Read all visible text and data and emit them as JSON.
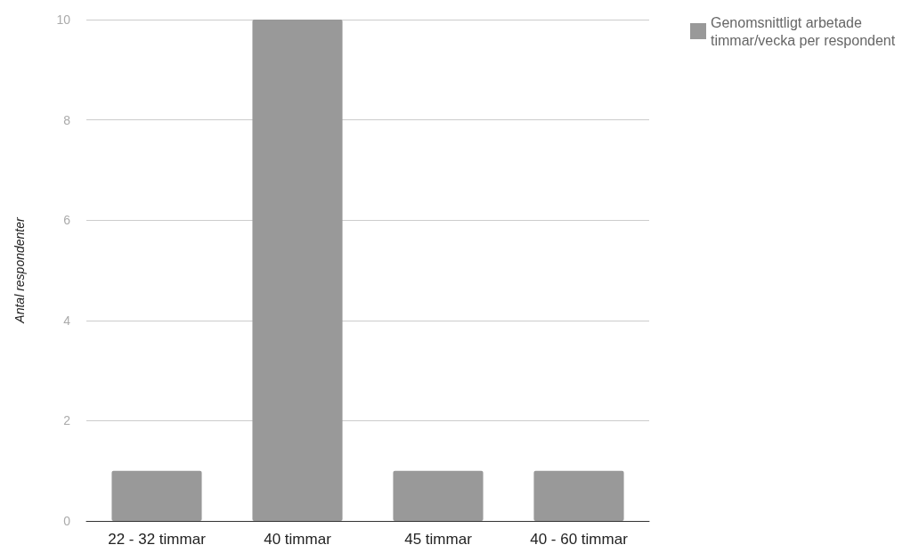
{
  "chart_data": {
    "type": "bar",
    "ylabel": "Antal respondenter",
    "categories": [
      "22 - 32 timmar",
      "40 timmar",
      "45 timmar",
      "40 - 60 timmar"
    ],
    "series": [
      {
        "name": "Genomsnittligt arbetade timmar/vecka per respondent",
        "color": "#999999",
        "values": [
          1,
          10,
          1,
          1
        ]
      }
    ],
    "ylim": [
      0,
      10
    ],
    "yticks": [
      0,
      2,
      4,
      6,
      8,
      10
    ],
    "grid": "y",
    "legend": "top right"
  }
}
